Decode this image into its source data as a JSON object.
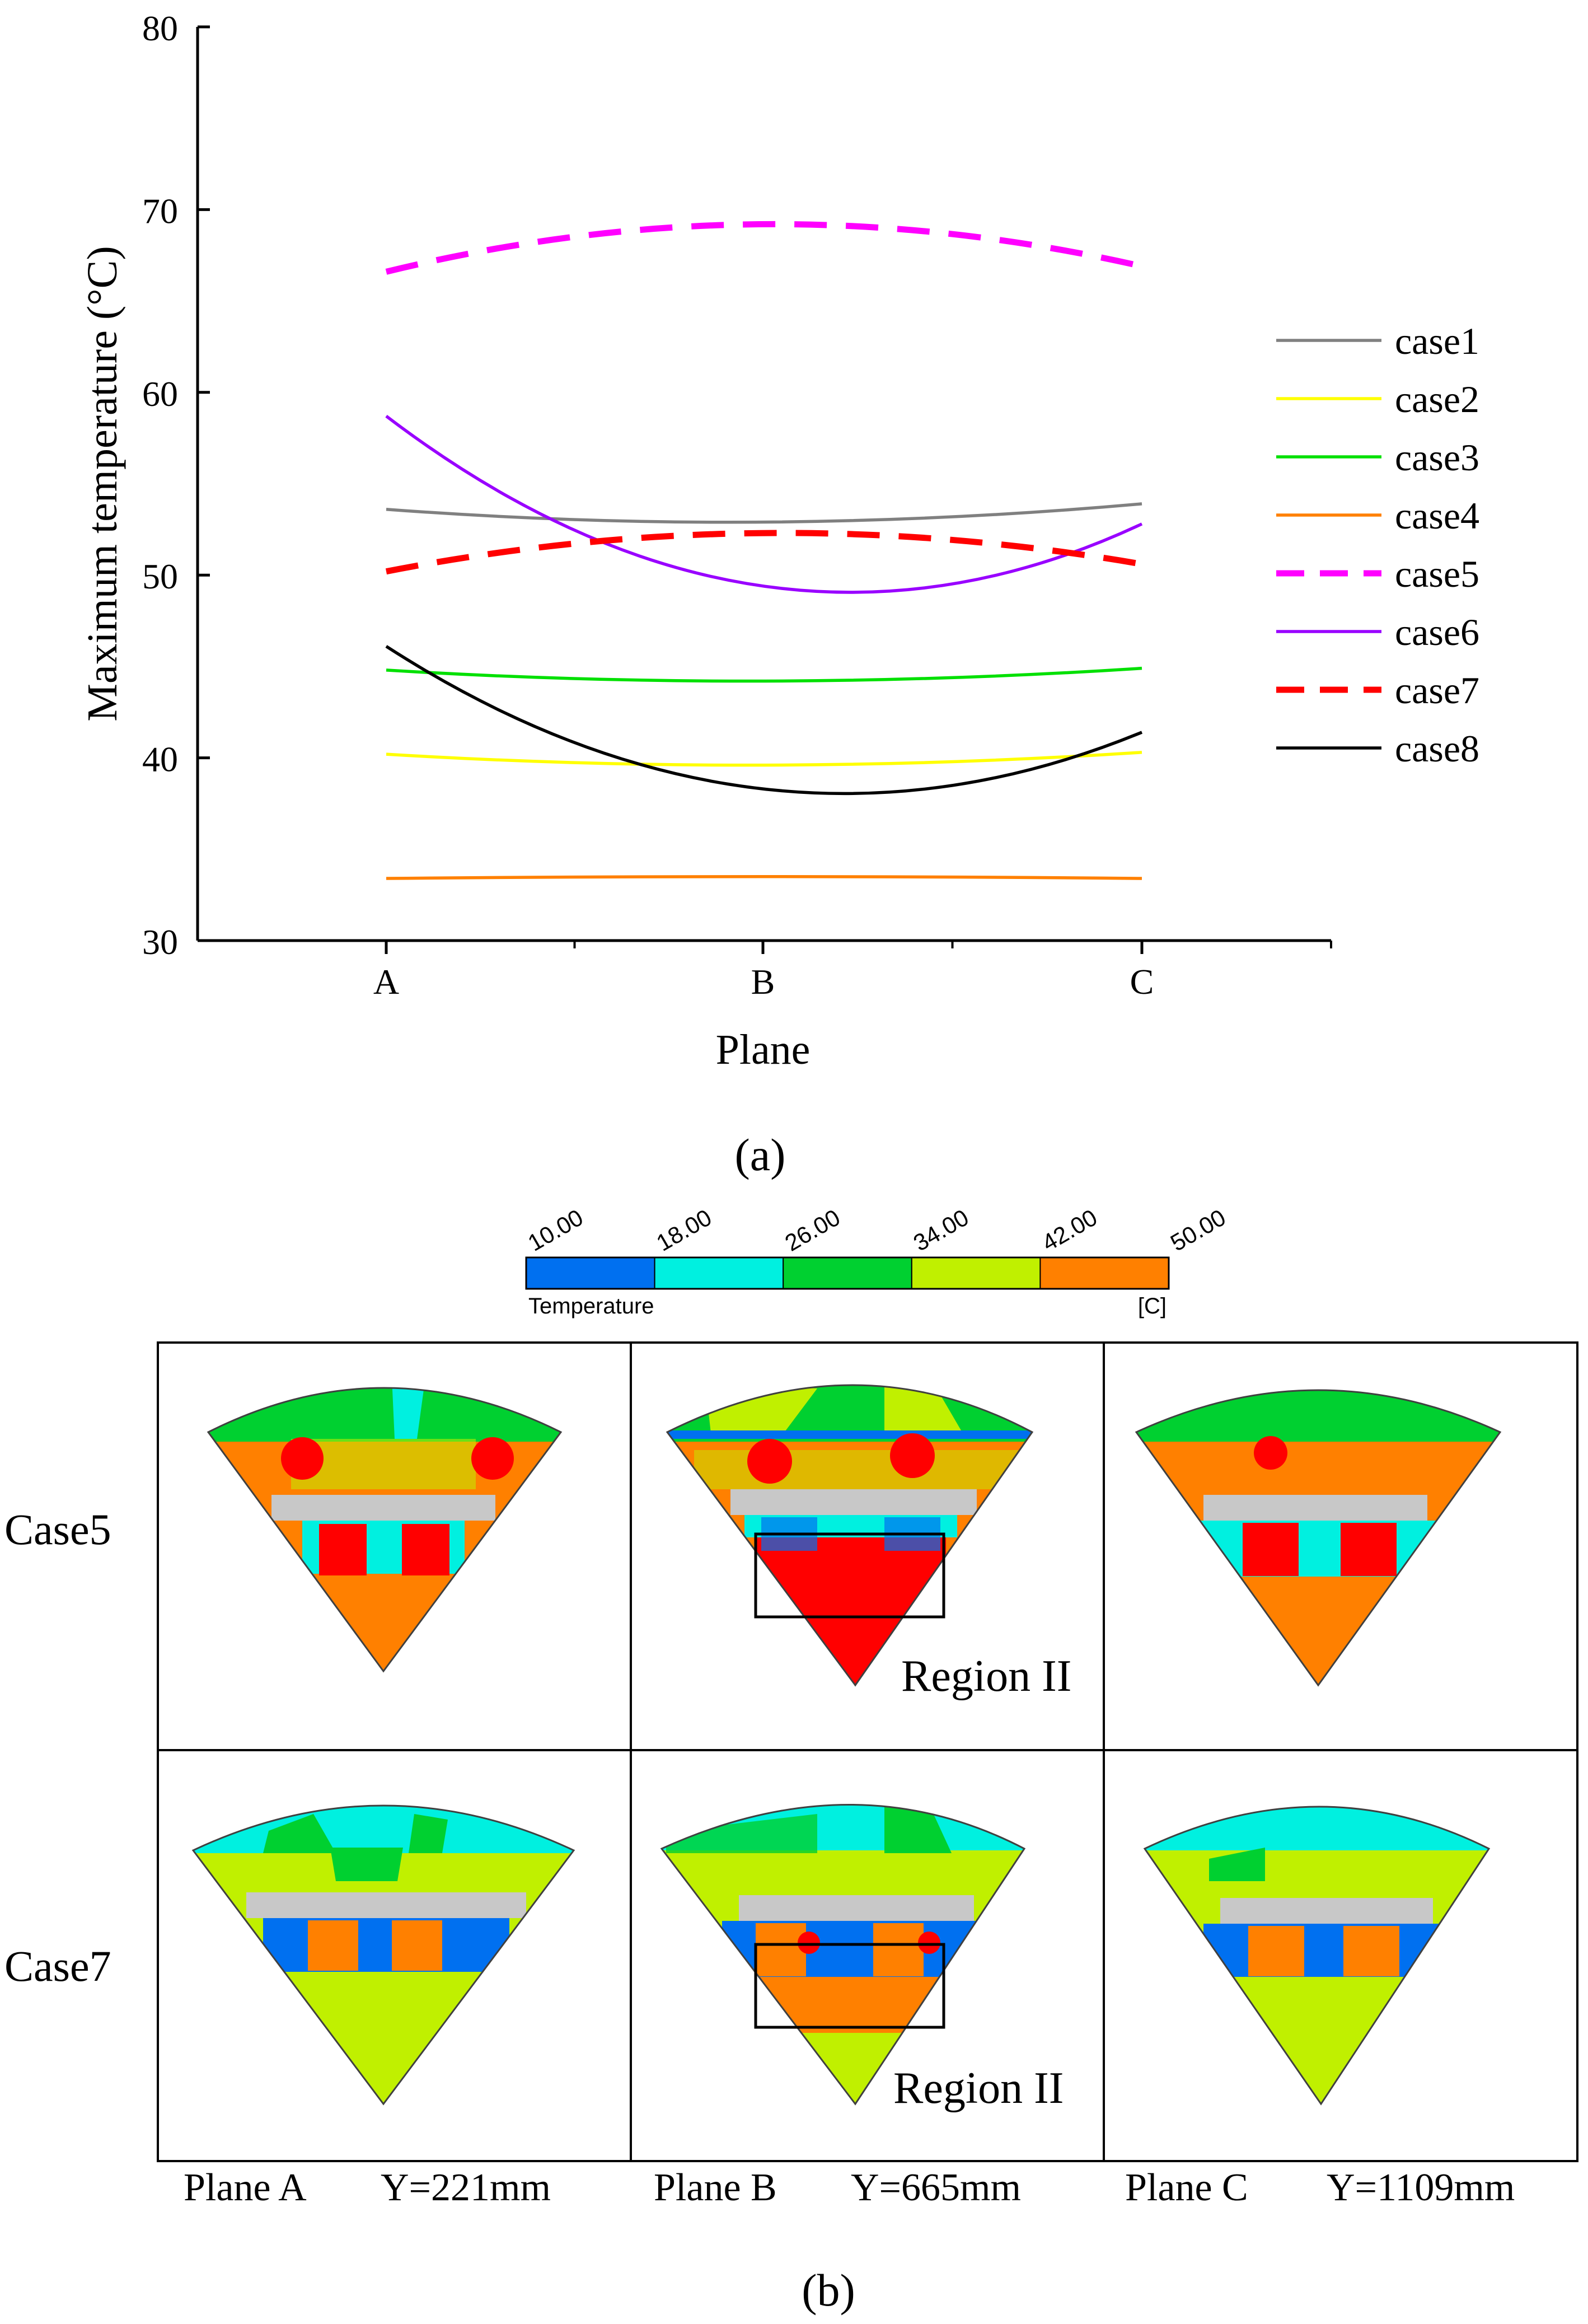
{
  "chart_data": {
    "type": "line",
    "title": "",
    "xlabel": "Plane",
    "ylabel": "Maximum temperature (°C)",
    "categories": [
      "A",
      "B",
      "C"
    ],
    "ylim": [
      30,
      80
    ],
    "yticks": [
      30,
      40,
      50,
      60,
      70,
      80
    ],
    "ytick_labels": [
      "30",
      "40",
      "50",
      "60",
      "70",
      "80"
    ],
    "grid": false,
    "legend_position": "right",
    "series": [
      {
        "name": "case1",
        "values": [
          53.6,
          52.9,
          53.9
        ],
        "color": "#808080",
        "dashed": false
      },
      {
        "name": "case2",
        "values": [
          40.2,
          39.6,
          40.3
        ],
        "color": "#ffff00",
        "dashed": false
      },
      {
        "name": "case3",
        "values": [
          44.8,
          44.2,
          44.9
        ],
        "color": "#00e000",
        "dashed": false
      },
      {
        "name": "case4",
        "values": [
          33.4,
          33.5,
          33.4
        ],
        "color": "#ff8000",
        "dashed": false
      },
      {
        "name": "case5",
        "values": [
          66.6,
          69.2,
          66.9
        ],
        "color": "#ff00ff",
        "dashed": true
      },
      {
        "name": "case6",
        "values": [
          58.7,
          49.4,
          52.8
        ],
        "color": "#9900ff",
        "dashed": false
      },
      {
        "name": "case7",
        "values": [
          50.2,
          52.3,
          50.6
        ],
        "color": "#ff0000",
        "dashed": true
      },
      {
        "name": "case8",
        "values": [
          46.1,
          38.3,
          41.4
        ],
        "color": "#000000",
        "dashed": false
      }
    ]
  },
  "figure": {
    "caption_a": "(a)",
    "caption_b": "(b)",
    "colorbar": {
      "labels": [
        "10.00",
        "18.00",
        "26.00",
        "34.00",
        "42.00",
        "50.00"
      ],
      "colors": [
        "#0070f0",
        "#00f0e0",
        "#00d030",
        "#c0f000",
        "#ff8000"
      ],
      "title": "Temperature",
      "unit": "[C]"
    },
    "row_labels": [
      "Case5",
      "Case7"
    ],
    "region_label": "Region II",
    "plane_labels": [
      {
        "plane": "Plane A",
        "y": "Y=221mm"
      },
      {
        "plane": "Plane B",
        "y": "Y=665mm"
      },
      {
        "plane": "Plane C",
        "y": "Y=1109mm"
      }
    ]
  }
}
